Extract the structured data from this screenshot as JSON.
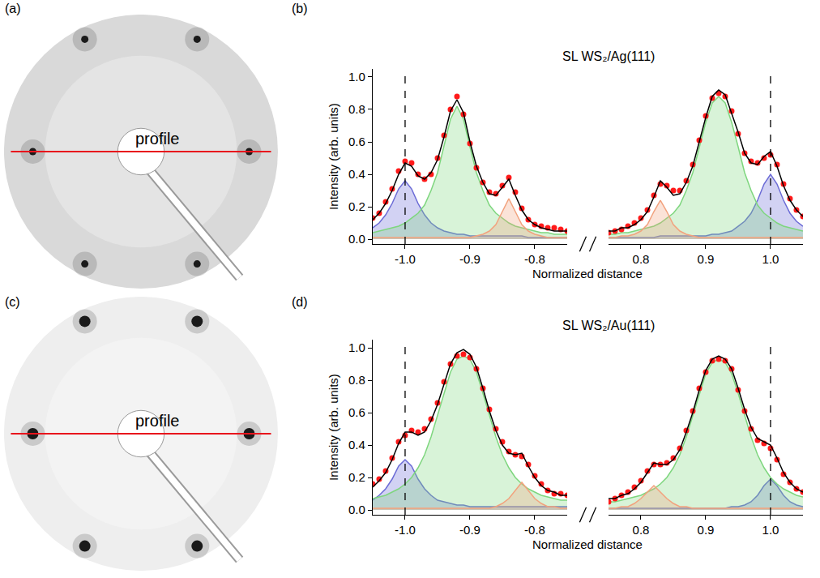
{
  "chart_data": [
    {
      "type": "image",
      "panel": "(a)",
      "annotation": "profile",
      "spots": [
        [
          -0.41,
          0.82
        ],
        [
          0.41,
          0.82
        ],
        [
          -0.79,
          0
        ],
        [
          0.79,
          0
        ],
        [
          -0.41,
          -0.82
        ],
        [
          0.41,
          -0.82
        ]
      ],
      "profile_x": [
        -0.95,
        0.95
      ],
      "profile_y": 0
    },
    {
      "type": "line",
      "panel": "(b)",
      "title": "SL WS₂/Ag(111)",
      "xlabel": "Normalized distance",
      "ylabel": "Intensity (arb. units)",
      "x": [
        -1.05,
        -1.04,
        -1.03,
        -1.02,
        -1.01,
        -1.0,
        -0.99,
        -0.98,
        -0.97,
        -0.96,
        -0.95,
        -0.94,
        -0.93,
        -0.92,
        -0.91,
        -0.9,
        -0.89,
        -0.88,
        -0.87,
        -0.86,
        -0.85,
        -0.84,
        -0.83,
        -0.82,
        -0.81,
        -0.8,
        -0.79,
        -0.78,
        -0.77,
        -0.76,
        -0.75,
        0.75,
        0.76,
        0.77,
        0.78,
        0.79,
        0.8,
        0.81,
        0.82,
        0.83,
        0.84,
        0.85,
        0.86,
        0.87,
        0.88,
        0.89,
        0.9,
        0.91,
        0.92,
        0.93,
        0.94,
        0.95,
        0.96,
        0.97,
        0.98,
        0.99,
        1.0,
        1.01,
        1.02,
        1.03,
        1.04,
        1.05
      ],
      "xlim": [
        [
          -1.05,
          -0.75
        ],
        [
          0.75,
          1.05
        ]
      ],
      "xticks": [
        [
          {
            "value": -1.0,
            "label": "-1.0"
          },
          -0.9,
          -0.8
        ],
        [
          0.8,
          0.9,
          {
            "value": 1.0,
            "label": "1.0"
          }
        ]
      ],
      "ylim": [
        -0.03,
        1.05
      ],
      "yticks": [
        {
          "value": 0,
          "label": "0.0"
        },
        0.2,
        0.4,
        0.6,
        0.8,
        {
          "value": 1,
          "label": "1.0"
        }
      ],
      "reference_lines": [
        -1.0,
        1.0
      ],
      "series": [
        {
          "type": "area",
          "color": "#6b6bd6",
          "values": [
            0.07,
            0.1,
            0.15,
            0.22,
            0.31,
            0.36,
            0.31,
            0.22,
            0.15,
            0.1,
            0.07,
            0.05,
            0.04,
            0.03,
            0.03,
            0.02,
            0.02,
            0.02,
            0.02,
            0.02,
            0.02,
            0.02,
            0.02,
            0.02,
            0.01,
            0.01,
            0.01,
            0.01,
            0.01,
            0.01,
            0.01,
            0.01,
            0.01,
            0.01,
            0.01,
            0.01,
            0.01,
            0.01,
            0.01,
            0.02,
            0.02,
            0.02,
            0.02,
            0.02,
            0.02,
            0.02,
            0.02,
            0.03,
            0.03,
            0.04,
            0.05,
            0.08,
            0.11,
            0.16,
            0.24,
            0.34,
            0.4,
            0.34,
            0.24,
            0.16,
            0.11,
            0.08
          ]
        },
        {
          "type": "area",
          "color": "#7ed67e",
          "values": [
            0.04,
            0.05,
            0.06,
            0.07,
            0.08,
            0.1,
            0.13,
            0.16,
            0.21,
            0.3,
            0.41,
            0.57,
            0.74,
            0.82,
            0.74,
            0.57,
            0.41,
            0.3,
            0.21,
            0.16,
            0.13,
            0.1,
            0.08,
            0.07,
            0.06,
            0.05,
            0.04,
            0.04,
            0.03,
            0.03,
            0.03,
            0.03,
            0.03,
            0.04,
            0.04,
            0.05,
            0.06,
            0.07,
            0.08,
            0.1,
            0.13,
            0.16,
            0.21,
            0.3,
            0.41,
            0.57,
            0.72,
            0.84,
            0.88,
            0.84,
            0.72,
            0.57,
            0.41,
            0.3,
            0.21,
            0.16,
            0.13,
            0.1,
            0.08,
            0.07,
            0.06,
            0.05
          ]
        },
        {
          "type": "area",
          "color": "#f2a27e",
          "values": [
            0.01,
            0.01,
            0.01,
            0.01,
            0.01,
            0.01,
            0.01,
            0.01,
            0.01,
            0.01,
            0.01,
            0.01,
            0.01,
            0.01,
            0.01,
            0.01,
            0.02,
            0.03,
            0.05,
            0.09,
            0.17,
            0.25,
            0.17,
            0.09,
            0.05,
            0.03,
            0.02,
            0.01,
            0.01,
            0.01,
            0.01,
            0.01,
            0.01,
            0.02,
            0.02,
            0.03,
            0.05,
            0.09,
            0.17,
            0.24,
            0.17,
            0.09,
            0.05,
            0.03,
            0.02,
            0.01,
            0.01,
            0.01,
            0.01,
            0.01,
            0.01,
            0.01,
            0.01,
            0.01,
            0.01,
            0.01,
            0.01,
            0.01,
            0.01,
            0.01,
            0.01,
            0.01
          ]
        },
        {
          "type": "scatter",
          "marker": "circle",
          "color": "#ff1a1a",
          "values": [
            0.13,
            0.16,
            0.23,
            0.31,
            0.42,
            0.48,
            0.47,
            0.4,
            0.37,
            0.4,
            0.5,
            0.64,
            0.8,
            0.88,
            0.77,
            0.59,
            0.44,
            0.35,
            0.29,
            0.28,
            0.33,
            0.38,
            0.29,
            0.19,
            0.12,
            0.09,
            0.08,
            0.07,
            0.07,
            0.06,
            0.05,
            0.04,
            0.05,
            0.06,
            0.08,
            0.1,
            0.13,
            0.18,
            0.27,
            0.34,
            0.33,
            0.3,
            0.3,
            0.36,
            0.46,
            0.61,
            0.76,
            0.87,
            0.9,
            0.88,
            0.79,
            0.65,
            0.53,
            0.48,
            0.47,
            0.5,
            0.52,
            0.46,
            0.34,
            0.25,
            0.18,
            0.14
          ]
        },
        {
          "type": "line",
          "line_style": "solid",
          "color": "#000000",
          "values": [
            0.12,
            0.16,
            0.22,
            0.3,
            0.4,
            0.47,
            0.45,
            0.39,
            0.37,
            0.41,
            0.49,
            0.63,
            0.79,
            0.86,
            0.78,
            0.6,
            0.45,
            0.35,
            0.28,
            0.27,
            0.32,
            0.37,
            0.27,
            0.18,
            0.12,
            0.09,
            0.07,
            0.06,
            0.05,
            0.05,
            0.05,
            0.05,
            0.05,
            0.07,
            0.07,
            0.09,
            0.12,
            0.17,
            0.26,
            0.36,
            0.32,
            0.27,
            0.28,
            0.35,
            0.45,
            0.6,
            0.75,
            0.88,
            0.92,
            0.89,
            0.78,
            0.66,
            0.53,
            0.47,
            0.46,
            0.51,
            0.54,
            0.45,
            0.33,
            0.24,
            0.18,
            0.14
          ]
        }
      ]
    },
    {
      "type": "image",
      "panel": "(c)",
      "annotation": "profile",
      "spots": [
        [
          -0.41,
          0.82
        ],
        [
          0.41,
          0.82
        ],
        [
          -0.79,
          0
        ],
        [
          0.79,
          0
        ],
        [
          -0.41,
          -0.82
        ],
        [
          0.41,
          -0.82
        ]
      ],
      "profile_x": [
        -0.95,
        0.95
      ],
      "profile_y": 0
    },
    {
      "type": "line",
      "panel": "(d)",
      "title": "SL WS₂/Au(111)",
      "xlabel": "Normalized distance",
      "ylabel": "Intensity (arb. units)",
      "x": [
        -1.05,
        -1.04,
        -1.03,
        -1.02,
        -1.01,
        -1.0,
        -0.99,
        -0.98,
        -0.97,
        -0.96,
        -0.95,
        -0.94,
        -0.93,
        -0.92,
        -0.91,
        -0.9,
        -0.89,
        -0.88,
        -0.87,
        -0.86,
        -0.85,
        -0.84,
        -0.83,
        -0.82,
        -0.81,
        -0.8,
        -0.79,
        -0.78,
        -0.77,
        -0.76,
        -0.75,
        0.75,
        0.76,
        0.77,
        0.78,
        0.79,
        0.8,
        0.81,
        0.82,
        0.83,
        0.84,
        0.85,
        0.86,
        0.87,
        0.88,
        0.89,
        0.9,
        0.91,
        0.92,
        0.93,
        0.94,
        0.95,
        0.96,
        0.97,
        0.98,
        0.99,
        1.0,
        1.01,
        1.02,
        1.03,
        1.04,
        1.05
      ],
      "xlim": [
        [
          -1.05,
          -0.75
        ],
        [
          0.75,
          1.05
        ]
      ],
      "xticks": [
        [
          {
            "value": -1.0,
            "label": "-1.0"
          },
          -0.9,
          -0.8
        ],
        [
          0.8,
          0.9,
          {
            "value": 1.0,
            "label": "1.0"
          }
        ]
      ],
      "ylim": [
        -0.03,
        1.05
      ],
      "yticks": [
        {
          "value": 0,
          "label": "0.0"
        },
        0.2,
        0.4,
        0.6,
        0.8,
        {
          "value": 1,
          "label": "1.0"
        }
      ],
      "reference_lines": [
        -1.0,
        1.0
      ],
      "series": [
        {
          "type": "area",
          "color": "#6b6bd6",
          "values": [
            0.06,
            0.09,
            0.13,
            0.19,
            0.27,
            0.31,
            0.27,
            0.19,
            0.13,
            0.09,
            0.06,
            0.05,
            0.04,
            0.03,
            0.03,
            0.02,
            0.02,
            0.02,
            0.02,
            0.02,
            0.02,
            0.02,
            0.02,
            0.02,
            0.02,
            0.02,
            0.02,
            0.02,
            0.02,
            0.02,
            0.02,
            0.01,
            0.01,
            0.01,
            0.01,
            0.01,
            0.01,
            0.01,
            0.01,
            0.01,
            0.01,
            0.01,
            0.01,
            0.01,
            0.01,
            0.01,
            0.01,
            0.01,
            0.01,
            0.01,
            0.02,
            0.02,
            0.03,
            0.05,
            0.09,
            0.15,
            0.19,
            0.15,
            0.09,
            0.05,
            0.03,
            0.02
          ]
        },
        {
          "type": "area",
          "color": "#7ed67e",
          "values": [
            0.07,
            0.08,
            0.09,
            0.11,
            0.13,
            0.16,
            0.2,
            0.26,
            0.34,
            0.45,
            0.58,
            0.72,
            0.85,
            0.93,
            0.95,
            0.93,
            0.85,
            0.72,
            0.58,
            0.45,
            0.34,
            0.26,
            0.2,
            0.16,
            0.13,
            0.11,
            0.09,
            0.08,
            0.07,
            0.06,
            0.06,
            0.05,
            0.05,
            0.06,
            0.07,
            0.08,
            0.09,
            0.11,
            0.13,
            0.16,
            0.2,
            0.26,
            0.34,
            0.45,
            0.58,
            0.72,
            0.84,
            0.91,
            0.93,
            0.91,
            0.84,
            0.72,
            0.58,
            0.45,
            0.34,
            0.26,
            0.2,
            0.16,
            0.13,
            0.11,
            0.09,
            0.08
          ]
        },
        {
          "type": "area",
          "color": "#f2a27e",
          "values": [
            0.01,
            0.01,
            0.01,
            0.01,
            0.01,
            0.01,
            0.01,
            0.01,
            0.01,
            0.01,
            0.01,
            0.01,
            0.01,
            0.01,
            0.01,
            0.01,
            0.01,
            0.01,
            0.01,
            0.02,
            0.04,
            0.07,
            0.12,
            0.17,
            0.12,
            0.07,
            0.04,
            0.02,
            0.02,
            0.01,
            0.01,
            0.01,
            0.01,
            0.02,
            0.02,
            0.04,
            0.07,
            0.11,
            0.15,
            0.11,
            0.07,
            0.04,
            0.02,
            0.02,
            0.01,
            0.01,
            0.01,
            0.01,
            0.01,
            0.01,
            0.01,
            0.01,
            0.01,
            0.01,
            0.01,
            0.01,
            0.01,
            0.01,
            0.01,
            0.01,
            0.01,
            0.01
          ]
        },
        {
          "type": "scatter",
          "marker": "circle",
          "color": "#ff1a1a",
          "values": [
            0.16,
            0.19,
            0.24,
            0.32,
            0.42,
            0.46,
            0.49,
            0.48,
            0.5,
            0.56,
            0.66,
            0.79,
            0.9,
            0.95,
            0.96,
            0.94,
            0.87,
            0.75,
            0.62,
            0.5,
            0.42,
            0.36,
            0.34,
            0.33,
            0.28,
            0.21,
            0.16,
            0.12,
            0.1,
            0.1,
            0.09,
            0.05,
            0.07,
            0.09,
            0.11,
            0.14,
            0.18,
            0.24,
            0.28,
            0.28,
            0.29,
            0.32,
            0.38,
            0.49,
            0.61,
            0.75,
            0.85,
            0.92,
            0.93,
            0.92,
            0.87,
            0.74,
            0.61,
            0.5,
            0.43,
            0.41,
            0.38,
            0.31,
            0.22,
            0.17,
            0.13,
            0.11
          ]
        },
        {
          "type": "line",
          "line_style": "solid",
          "color": "#000000",
          "values": [
            0.14,
            0.18,
            0.23,
            0.31,
            0.41,
            0.48,
            0.48,
            0.46,
            0.48,
            0.55,
            0.65,
            0.78,
            0.9,
            0.97,
            0.99,
            0.96,
            0.88,
            0.75,
            0.61,
            0.49,
            0.4,
            0.35,
            0.34,
            0.35,
            0.27,
            0.2,
            0.15,
            0.12,
            0.11,
            0.09,
            0.09,
            0.07,
            0.07,
            0.09,
            0.1,
            0.13,
            0.17,
            0.23,
            0.29,
            0.28,
            0.28,
            0.31,
            0.37,
            0.48,
            0.6,
            0.74,
            0.86,
            0.93,
            0.95,
            0.93,
            0.87,
            0.75,
            0.62,
            0.51,
            0.44,
            0.42,
            0.4,
            0.32,
            0.23,
            0.17,
            0.13,
            0.11
          ]
        }
      ]
    }
  ]
}
